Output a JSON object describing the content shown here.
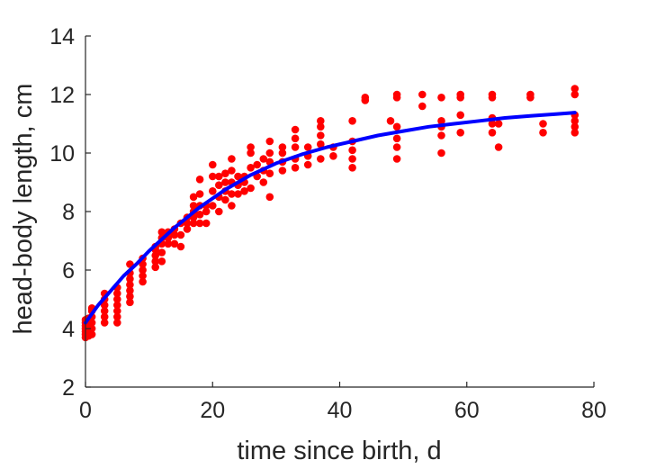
{
  "chart_data": {
    "type": "scatter",
    "xlabel": "time since birth, d",
    "ylabel": "head-body length, cm",
    "xlim": [
      0,
      80
    ],
    "ylim": [
      2,
      14
    ],
    "xticks": [
      "0",
      "20",
      "40",
      "60",
      "80"
    ],
    "yticks": [
      "2",
      "4",
      "6",
      "8",
      "10",
      "12",
      "14"
    ],
    "grid": false,
    "colors": {
      "points": "#ff0000",
      "fit": "#0000ff",
      "axes": "#262626"
    },
    "series": [
      {
        "type": "scatter",
        "points": [
          [
            0,
            3.7
          ],
          [
            0,
            3.8
          ],
          [
            0,
            3.9
          ],
          [
            0,
            4.0
          ],
          [
            0,
            4.1
          ],
          [
            0,
            4.2
          ],
          [
            0,
            4.3
          ],
          [
            0.5,
            3.75
          ],
          [
            0.5,
            3.95
          ],
          [
            0.5,
            4.15
          ],
          [
            0.5,
            4.35
          ],
          [
            1,
            3.8
          ],
          [
            1,
            4.0
          ],
          [
            1,
            4.2
          ],
          [
            1,
            4.4
          ],
          [
            1,
            4.6
          ],
          [
            1,
            4.7
          ],
          [
            3,
            4.2
          ],
          [
            3,
            4.4
          ],
          [
            3,
            4.6
          ],
          [
            3,
            4.8
          ],
          [
            3,
            5.0
          ],
          [
            3,
            5.2
          ],
          [
            5,
            4.2
          ],
          [
            5,
            4.4
          ],
          [
            5,
            4.6
          ],
          [
            5,
            4.8
          ],
          [
            5,
            5.0
          ],
          [
            5,
            5.2
          ],
          [
            5,
            5.4
          ],
          [
            7,
            4.9
          ],
          [
            7,
            5.1
          ],
          [
            7,
            5.3
          ],
          [
            7,
            5.5
          ],
          [
            7,
            5.7
          ],
          [
            7,
            5.9
          ],
          [
            7,
            6.2
          ],
          [
            9,
            5.6
          ],
          [
            9,
            5.8
          ],
          [
            9,
            6.0
          ],
          [
            9,
            6.2
          ],
          [
            9,
            6.4
          ],
          [
            11,
            6.1
          ],
          [
            11,
            6.3
          ],
          [
            11,
            6.5
          ],
          [
            11,
            6.7
          ],
          [
            11,
            6.8
          ],
          [
            12,
            6.3
          ],
          [
            12,
            6.6
          ],
          [
            12,
            6.9
          ],
          [
            12,
            7.1
          ],
          [
            12,
            7.3
          ],
          [
            13,
            6.9
          ],
          [
            13,
            7.1
          ],
          [
            13,
            7.3
          ],
          [
            14,
            6.9
          ],
          [
            14,
            7.2
          ],
          [
            14,
            7.4
          ],
          [
            15,
            6.8
          ],
          [
            15,
            7.2
          ],
          [
            15,
            7.6
          ],
          [
            16,
            7.4
          ],
          [
            16,
            7.6
          ],
          [
            16,
            7.8
          ],
          [
            17,
            7.6
          ],
          [
            17,
            7.8
          ],
          [
            17,
            8.0
          ],
          [
            17,
            8.2
          ],
          [
            17,
            8.5
          ],
          [
            18,
            7.6
          ],
          [
            18,
            7.9
          ],
          [
            18,
            8.2
          ],
          [
            18,
            8.6
          ],
          [
            18,
            9.1
          ],
          [
            19,
            7.6
          ],
          [
            19,
            8.0
          ],
          [
            19,
            8.2
          ],
          [
            20,
            8.2
          ],
          [
            20,
            8.7
          ],
          [
            20,
            9.2
          ],
          [
            20,
            9.6
          ],
          [
            21,
            8.0
          ],
          [
            21,
            8.5
          ],
          [
            21,
            8.9
          ],
          [
            21,
            9.2
          ],
          [
            22,
            8.4
          ],
          [
            22,
            8.7
          ],
          [
            22,
            9.0
          ],
          [
            22,
            9.3
          ],
          [
            23,
            8.2
          ],
          [
            23,
            8.6
          ],
          [
            23,
            9.0
          ],
          [
            23,
            9.4
          ],
          [
            23,
            9.8
          ],
          [
            24,
            8.6
          ],
          [
            24,
            8.9
          ],
          [
            24,
            9.2
          ],
          [
            25,
            8.7
          ],
          [
            25,
            9.0
          ],
          [
            25,
            9.2
          ],
          [
            26,
            8.8
          ],
          [
            26,
            9.5
          ],
          [
            26,
            10.0
          ],
          [
            26,
            10.2
          ],
          [
            27,
            9.2
          ],
          [
            27,
            9.6
          ],
          [
            28,
            9.0
          ],
          [
            28,
            9.4
          ],
          [
            28,
            9.8
          ],
          [
            29,
            8.5
          ],
          [
            29,
            9.3
          ],
          [
            29,
            9.7
          ],
          [
            29,
            10.0
          ],
          [
            29,
            10.4
          ],
          [
            31,
            9.4
          ],
          [
            31,
            9.7
          ],
          [
            31,
            10.0
          ],
          [
            31,
            10.2
          ],
          [
            33,
            9.5
          ],
          [
            33,
            9.8
          ],
          [
            33,
            10.2
          ],
          [
            33,
            10.5
          ],
          [
            33,
            10.8
          ],
          [
            35,
            9.6
          ],
          [
            35,
            9.9
          ],
          [
            35,
            10.2
          ],
          [
            37,
            9.8
          ],
          [
            37,
            10.3
          ],
          [
            37,
            10.6
          ],
          [
            37,
            10.9
          ],
          [
            37,
            11.1
          ],
          [
            39,
            9.9
          ],
          [
            39,
            10.2
          ],
          [
            42,
            9.5
          ],
          [
            42,
            9.8
          ],
          [
            42,
            10.1
          ],
          [
            42,
            10.4
          ],
          [
            42,
            11.1
          ],
          [
            44,
            11.8
          ],
          [
            44,
            11.9
          ],
          [
            48,
            11.1
          ],
          [
            49,
            9.8
          ],
          [
            49,
            10.2
          ],
          [
            49,
            10.5
          ],
          [
            49,
            10.9
          ],
          [
            49,
            11.9
          ],
          [
            49,
            12.0
          ],
          [
            53,
            11.6
          ],
          [
            53,
            12.0
          ],
          [
            56,
            10.0
          ],
          [
            56,
            10.6
          ],
          [
            56,
            10.9
          ],
          [
            56,
            11.1
          ],
          [
            56,
            11.9
          ],
          [
            59,
            10.7
          ],
          [
            59,
            11.3
          ],
          [
            59,
            11.9
          ],
          [
            59,
            12.0
          ],
          [
            64,
            10.7
          ],
          [
            64,
            11.0
          ],
          [
            64,
            11.2
          ],
          [
            64,
            11.9
          ],
          [
            64,
            12.0
          ],
          [
            65,
            10.2
          ],
          [
            65,
            11.0
          ],
          [
            70,
            11.9
          ],
          [
            70,
            12.0
          ],
          [
            72,
            10.7
          ],
          [
            72,
            11.0
          ],
          [
            77,
            10.7
          ],
          [
            77,
            10.9
          ],
          [
            77,
            11.1
          ],
          [
            77,
            11.3
          ],
          [
            77,
            12.0
          ],
          [
            77,
            12.2
          ]
        ]
      },
      {
        "type": "line",
        "points": [
          [
            0,
            4.2
          ],
          [
            2,
            4.8
          ],
          [
            4,
            5.3
          ],
          [
            6,
            5.8
          ],
          [
            8,
            6.2
          ],
          [
            10,
            6.65
          ],
          [
            12,
            7.05
          ],
          [
            14,
            7.45
          ],
          [
            16,
            7.8
          ],
          [
            18,
            8.15
          ],
          [
            20,
            8.45
          ],
          [
            22,
            8.75
          ],
          [
            24,
            9.0
          ],
          [
            26,
            9.25
          ],
          [
            28,
            9.45
          ],
          [
            30,
            9.65
          ],
          [
            34,
            9.95
          ],
          [
            38,
            10.2
          ],
          [
            42,
            10.4
          ],
          [
            46,
            10.6
          ],
          [
            50,
            10.75
          ],
          [
            54,
            10.9
          ],
          [
            58,
            11.0
          ],
          [
            62,
            11.1
          ],
          [
            66,
            11.2
          ],
          [
            70,
            11.27
          ],
          [
            74,
            11.33
          ],
          [
            77,
            11.38
          ]
        ]
      }
    ]
  }
}
